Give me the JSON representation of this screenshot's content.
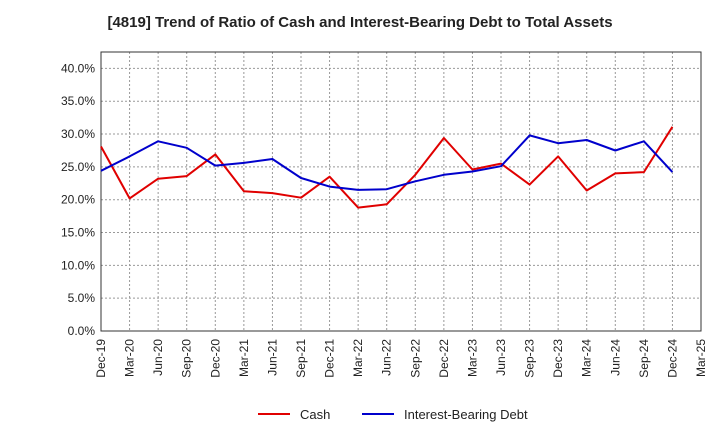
{
  "chart_data": {
    "type": "line",
    "title": "[4819]  Trend of Ratio of Cash and Interest-Bearing Debt to Total Assets",
    "xlabel": "",
    "ylabel": "",
    "ylim": [
      0,
      42.5
    ],
    "yticks": [
      0,
      5,
      10,
      15,
      20,
      25,
      30,
      35,
      40
    ],
    "ytick_labels": [
      "0.0%",
      "5.0%",
      "10.0%",
      "15.0%",
      "20.0%",
      "25.0%",
      "30.0%",
      "35.0%",
      "40.0%"
    ],
    "categories": [
      "Dec-19",
      "Mar-20",
      "Jun-20",
      "Sep-20",
      "Dec-20",
      "Mar-21",
      "Jun-21",
      "Sep-21",
      "Dec-21",
      "Mar-22",
      "Jun-22",
      "Sep-22",
      "Dec-22",
      "Mar-23",
      "Jun-23",
      "Sep-23",
      "Dec-23",
      "Mar-24",
      "Jun-24",
      "Sep-24",
      "Dec-24",
      "Mar-25"
    ],
    "xtick_labels": [
      "Dec-19",
      "Mar-20",
      "Jun-20",
      "Sep-20",
      "Dec-20",
      "Mar-21",
      "Jun-21",
      "Sep-21",
      "Dec-21",
      "Mar-22",
      "Jun-22",
      "Sep-22",
      "Dec-22",
      "Mar-23",
      "Jun-23",
      "Sep-23",
      "Dec-23",
      "Mar-24",
      "Jun-24",
      "Sep-24",
      "Dec-24",
      "Mar-25"
    ],
    "grid": true,
    "legend_position": "bottom",
    "series": [
      {
        "name": "Cash",
        "color": "#e00000",
        "values": [
          28.1,
          20.2,
          23.2,
          23.6,
          26.9,
          21.3,
          21.0,
          20.3,
          23.5,
          18.8,
          19.3,
          23.8,
          29.4,
          24.6,
          25.5,
          22.3,
          26.6,
          21.4,
          24.0,
          24.2,
          31.1,
          null
        ]
      },
      {
        "name": "Interest-Bearing Debt",
        "color": "#0000cc",
        "values": [
          24.4,
          26.6,
          28.9,
          27.9,
          25.2,
          25.6,
          26.2,
          23.3,
          22.0,
          21.5,
          21.6,
          22.8,
          23.8,
          24.3,
          25.1,
          29.8,
          28.6,
          29.1,
          27.5,
          28.9,
          24.2,
          null
        ]
      }
    ]
  }
}
